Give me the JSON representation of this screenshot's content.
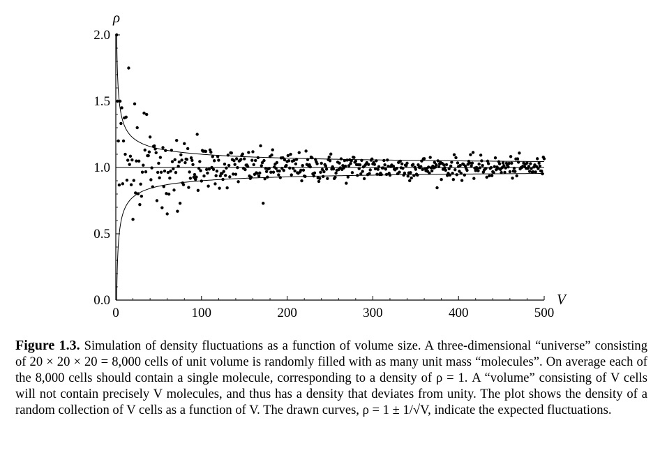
{
  "chart_data": {
    "type": "scatter",
    "xlabel": "V",
    "ylabel": "ρ",
    "xlim": [
      0,
      500
    ],
    "ylim": [
      0,
      2.0
    ],
    "xticks": [
      "0",
      "100",
      "200",
      "300",
      "400",
      "500"
    ],
    "yticks": [
      "0.0",
      "0.5",
      "1.0",
      "1.5",
      "2.0"
    ],
    "grid": false,
    "points_sample": {
      "x": [
        1,
        2,
        3,
        5,
        7,
        9,
        12,
        15,
        18,
        22,
        25,
        28,
        33,
        36,
        40,
        48,
        55,
        60,
        65,
        72,
        75,
        80,
        95,
        172
      ],
      "y": [
        2.0,
        1.5,
        1.2,
        1.5,
        1.45,
        1.2,
        1.38,
        1.75,
        0.87,
        1.48,
        1.3,
        0.72,
        1.41,
        1.4,
        1.23,
        0.75,
        1.15,
        0.65,
        1.13,
        0.67,
        0.73,
        1.18,
        1.25,
        0.73
      ]
    },
    "total_points": 500,
    "reference_line": {
      "y": 1.0
    },
    "curves": [
      {
        "formula": "1 + 1/sqrt(V)"
      },
      {
        "formula": "1 - 1/sqrt(V)"
      }
    ]
  },
  "caption": {
    "label": "Figure 1.3.",
    "text": "Simulation of density fluctuations as a function of volume size. A three-dimensional “universe” consisting of 20 × 20 × 20 = 8,000 cells of unit volume is randomly filled with as many unit mass “molecules”. On average each of the 8,000 cells should contain a single molecule, corresponding to a density of ρ = 1. A “volume” consisting of V cells will not contain precisely V molecules, and thus has a density that deviates from unity. The plot shows the density of a random collection of V cells as a function of V. The drawn curves, ρ = 1 ± 1/√V, indicate the expected fluctuations."
  }
}
